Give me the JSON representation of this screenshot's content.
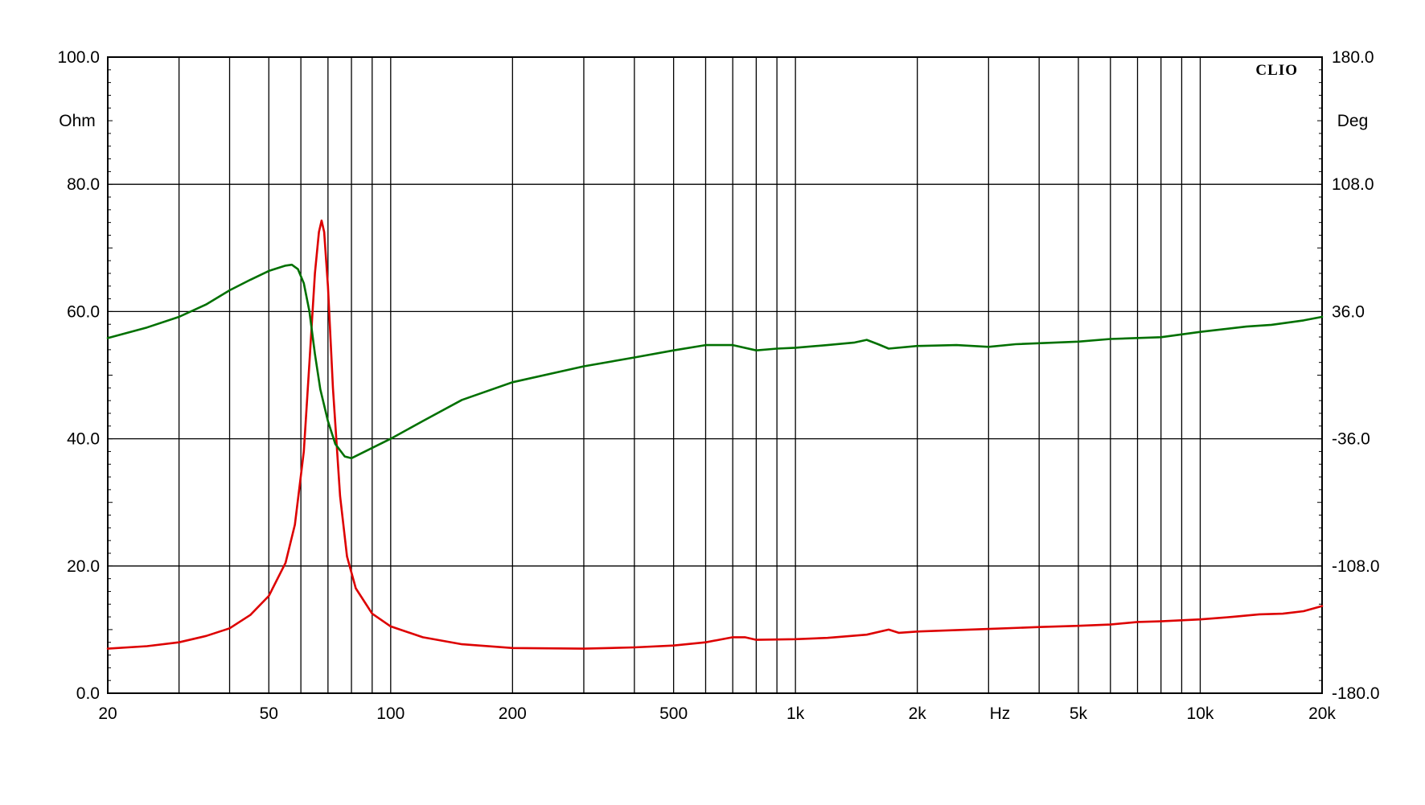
{
  "chart_data": {
    "type": "line",
    "watermark": "CLIO",
    "x_axis": {
      "scale": "log",
      "range": [
        20,
        20000
      ],
      "unit_label": "Hz",
      "tick_labels": [
        {
          "value": 20,
          "label": "20"
        },
        {
          "value": 50,
          "label": "50"
        },
        {
          "value": 100,
          "label": "100"
        },
        {
          "value": 200,
          "label": "200"
        },
        {
          "value": 500,
          "label": "500"
        },
        {
          "value": 1000,
          "label": "1k"
        },
        {
          "value": 2000,
          "label": "2k"
        },
        {
          "value": 5000,
          "label": "5k"
        },
        {
          "value": 10000,
          "label": "10k"
        },
        {
          "value": 20000,
          "label": "20k"
        }
      ],
      "unit_label_position": 3200
    },
    "y_left": {
      "unit_label": "Ohm",
      "range": [
        0,
        100
      ],
      "tick_labels": [
        "0.0",
        "20.0",
        "40.0",
        "60.0",
        "80.0",
        "100.0"
      ]
    },
    "y_right": {
      "unit_label": "Deg",
      "range": [
        -180,
        180
      ],
      "tick_labels": [
        "-180.0",
        "-108.0",
        "-36.0",
        "36.0",
        "108.0",
        "180.0"
      ]
    },
    "grid": true,
    "series": [
      {
        "axis": "left",
        "color": "#dd0000",
        "points": [
          [
            20,
            7.0
          ],
          [
            25,
            7.4
          ],
          [
            30,
            8.0
          ],
          [
            35,
            9.0
          ],
          [
            40,
            10.2
          ],
          [
            45,
            12.3
          ],
          [
            50,
            15.3
          ],
          [
            55,
            20.5
          ],
          [
            58,
            26.5
          ],
          [
            61,
            38.0
          ],
          [
            63,
            52.0
          ],
          [
            65,
            66.0
          ],
          [
            66.5,
            72.5
          ],
          [
            67.5,
            74.3
          ],
          [
            68.5,
            72.5
          ],
          [
            70,
            64.0
          ],
          [
            72,
            48.0
          ],
          [
            75,
            31.0
          ],
          [
            78,
            21.5
          ],
          [
            82,
            16.5
          ],
          [
            90,
            12.5
          ],
          [
            100,
            10.5
          ],
          [
            120,
            8.8
          ],
          [
            150,
            7.7
          ],
          [
            200,
            7.1
          ],
          [
            300,
            7.0
          ],
          [
            400,
            7.2
          ],
          [
            500,
            7.5
          ],
          [
            600,
            8.0
          ],
          [
            700,
            8.8
          ],
          [
            750,
            8.8
          ],
          [
            800,
            8.4
          ],
          [
            1000,
            8.5
          ],
          [
            1200,
            8.7
          ],
          [
            1500,
            9.2
          ],
          [
            1700,
            10.0
          ],
          [
            1800,
            9.5
          ],
          [
            2000,
            9.7
          ],
          [
            3000,
            10.1
          ],
          [
            4000,
            10.4
          ],
          [
            5000,
            10.6
          ],
          [
            6000,
            10.8
          ],
          [
            7000,
            11.2
          ],
          [
            8000,
            11.3
          ],
          [
            10000,
            11.6
          ],
          [
            12000,
            12.0
          ],
          [
            14000,
            12.4
          ],
          [
            16000,
            12.5
          ],
          [
            18000,
            12.9
          ],
          [
            20000,
            13.7
          ]
        ]
      },
      {
        "axis": "right",
        "color": "#007000",
        "points": [
          [
            20,
            21.0
          ],
          [
            25,
            27.0
          ],
          [
            30,
            33.0
          ],
          [
            35,
            40.0
          ],
          [
            40,
            48.0
          ],
          [
            45,
            54.0
          ],
          [
            50,
            59.0
          ],
          [
            55,
            62.0
          ],
          [
            57,
            62.5
          ],
          [
            59,
            60.0
          ],
          [
            61,
            52.0
          ],
          [
            63,
            36.0
          ],
          [
            65,
            12.0
          ],
          [
            67,
            -8.0
          ],
          [
            70,
            -26.0
          ],
          [
            73,
            -39.0
          ],
          [
            77,
            -46.0
          ],
          [
            80,
            -47.0
          ],
          [
            85,
            -44.0
          ],
          [
            100,
            -36.0
          ],
          [
            120,
            -26.0
          ],
          [
            150,
            -14.0
          ],
          [
            200,
            -4.0
          ],
          [
            300,
            5.0
          ],
          [
            400,
            10.0
          ],
          [
            500,
            14.0
          ],
          [
            600,
            17.0
          ],
          [
            700,
            17.0
          ],
          [
            800,
            14.0
          ],
          [
            900,
            15.0
          ],
          [
            1000,
            15.5
          ],
          [
            1200,
            17.0
          ],
          [
            1400,
            18.5
          ],
          [
            1500,
            20.0
          ],
          [
            1600,
            17.5
          ],
          [
            1700,
            15.0
          ],
          [
            2000,
            16.5
          ],
          [
            2500,
            17.0
          ],
          [
            3000,
            16.0
          ],
          [
            3500,
            17.5
          ],
          [
            5000,
            19.0
          ],
          [
            6000,
            20.5
          ],
          [
            8000,
            21.5
          ],
          [
            10000,
            24.5
          ],
          [
            13000,
            27.5
          ],
          [
            15000,
            28.5
          ],
          [
            18000,
            31.0
          ],
          [
            20000,
            33.0
          ]
        ]
      }
    ]
  }
}
